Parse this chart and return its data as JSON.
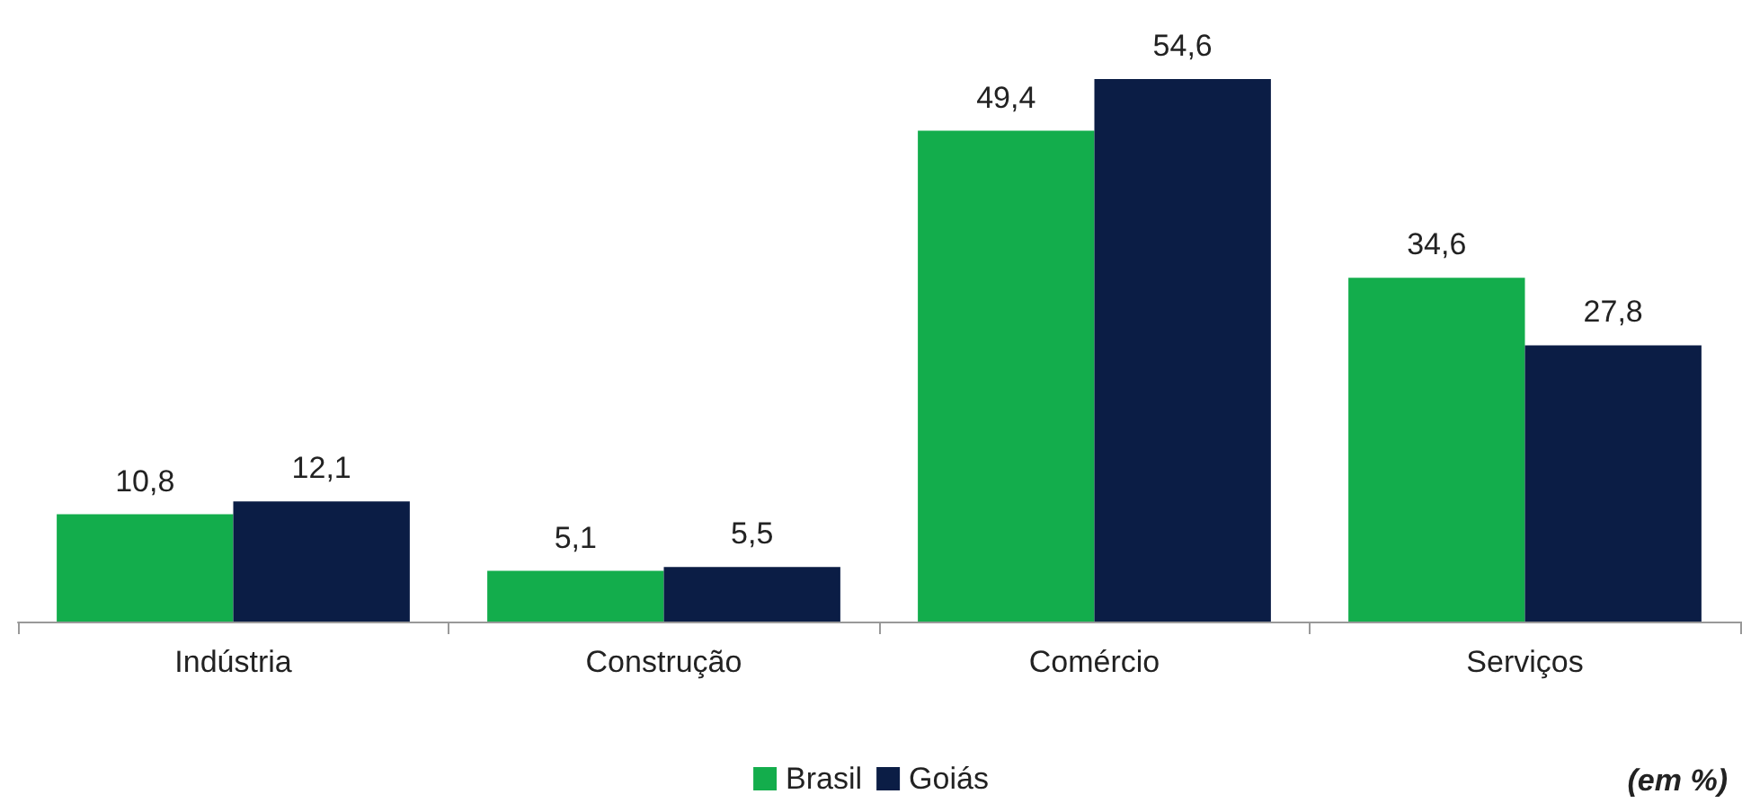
{
  "chart_data": {
    "type": "bar",
    "categories": [
      "Indústria",
      "Construção",
      "Comércio",
      "Serviços"
    ],
    "series": [
      {
        "name": "Brasil",
        "color": "#13ad4c",
        "values": [
          10.8,
          5.1,
          49.4,
          34.6
        ],
        "value_labels": [
          "10,8",
          "5,1",
          "49,4",
          "34,6"
        ]
      },
      {
        "name": "Goiás",
        "color": "#0b1d45",
        "values": [
          12.1,
          5.5,
          54.6,
          27.8
        ],
        "value_labels": [
          "12,1",
          "5,5",
          "54,6",
          "27,8"
        ]
      }
    ],
    "legend": "bottom",
    "annotations": [
      "(em %)"
    ]
  }
}
